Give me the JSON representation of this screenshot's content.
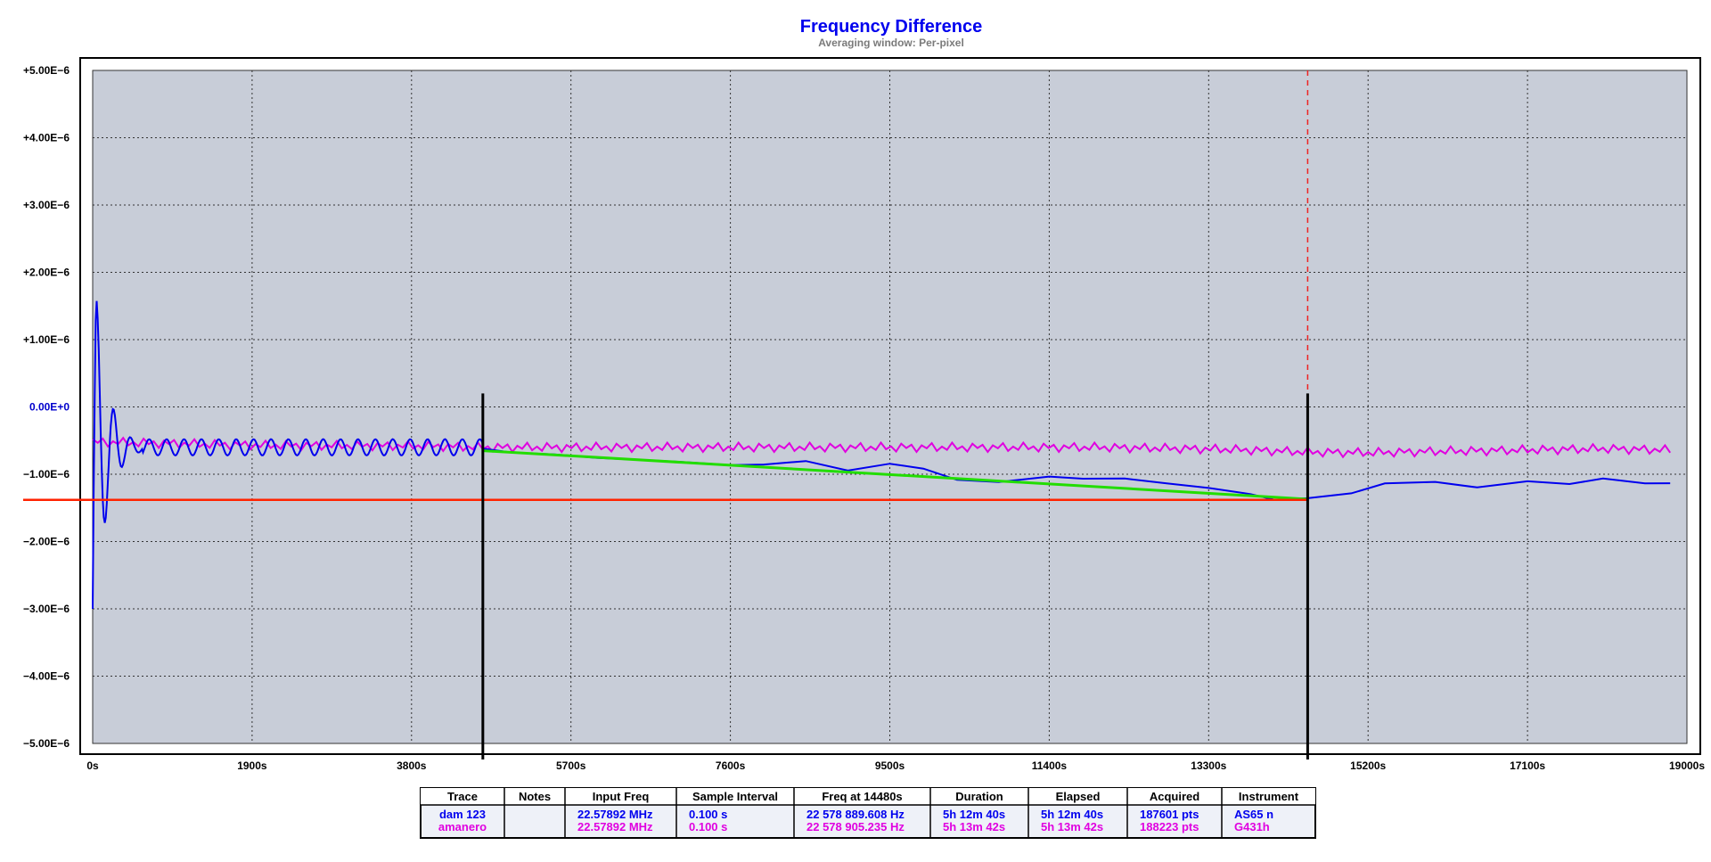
{
  "colors": {
    "title": "#0000ee",
    "subtitle": "#7a7a7a",
    "plot_background": "#c8cdd8",
    "grid": "#333333",
    "trace_dam": "#0000ee",
    "trace_amanero": "#e000e0",
    "fit_line": "#22dd00",
    "reference_line": "#ff2200",
    "cursor_marker": "#000000",
    "cursor_dashed": "#ee2222",
    "zero_tick": "#0000cc",
    "table_freq_header": "#ff0000"
  },
  "chart_data": {
    "type": "line",
    "title": "Frequency Difference",
    "subtitle": "Averaging window: Per-pixel",
    "xlim": [
      0,
      19000
    ],
    "ylim": [
      -5e-06,
      5e-06
    ],
    "x_ticks": [
      0,
      1900,
      3800,
      5700,
      7600,
      9500,
      11400,
      13300,
      15200,
      17100,
      19000
    ],
    "x_tick_labels": [
      "0s",
      "1900s",
      "3800s",
      "5700s",
      "7600s",
      "9500s",
      "11400s",
      "13300s",
      "15200s",
      "17100s",
      "19000s"
    ],
    "y_ticks": [
      5e-06,
      4e-06,
      3e-06,
      2e-06,
      1e-06,
      0,
      -1e-06,
      -2e-06,
      -3e-06,
      -4e-06,
      -5e-06
    ],
    "y_tick_labels": [
      "+5.00E−6",
      "+4.00E−6",
      "+3.00E−6",
      "+2.00E−6",
      "+1.00E−6",
      "0.00E+0",
      "−1.00E−6",
      "−2.00E−6",
      "−3.00E−6",
      "−4.00E−6",
      "−5.00E−6"
    ],
    "grid": true,
    "series": [
      {
        "name": "dam 123",
        "color": "#0000ee",
        "points": [
          [
            4650,
            -6.2e-07
          ],
          [
            5000,
            -6.8e-07
          ],
          [
            5500,
            -7.2e-07
          ],
          [
            6000,
            -7.4e-07
          ],
          [
            6500,
            -8e-07
          ],
          [
            7000,
            -8e-07
          ],
          [
            7600,
            -8.8e-07
          ],
          [
            8000,
            -8.4e-07
          ],
          [
            8500,
            -8.2e-07
          ],
          [
            9000,
            -9.3e-07
          ],
          [
            9500,
            -8.6e-07
          ],
          [
            9900,
            -9e-07
          ],
          [
            10300,
            -1.1e-06
          ],
          [
            10800,
            -1.1e-06
          ],
          [
            11400,
            -1.05e-06
          ],
          [
            11800,
            -1.05e-06
          ],
          [
            12300,
            -1.08e-06
          ],
          [
            12800,
            -1.12e-06
          ],
          [
            13300,
            -1.22e-06
          ],
          [
            13800,
            -1.28e-06
          ],
          [
            14100,
            -1.4e-06
          ],
          [
            14480,
            -1.34e-06
          ],
          [
            15000,
            -1.3e-06
          ],
          [
            15400,
            -1.12e-06
          ],
          [
            16000,
            -1.13e-06
          ],
          [
            16500,
            -1.18e-06
          ],
          [
            17100,
            -1.12e-06
          ],
          [
            17600,
            -1.13e-06
          ],
          [
            18000,
            -1.08e-06
          ],
          [
            18500,
            -1.12e-06
          ],
          [
            18800,
            -1.15e-06
          ]
        ]
      },
      {
        "name": "amanero",
        "color": "#e000e0",
        "points": [
          [
            0,
            -5.2e-07
          ],
          [
            2000,
            -5.7e-07
          ],
          [
            4000,
            -5.8e-07
          ],
          [
            4650,
            -6e-07
          ],
          [
            6000,
            -6e-07
          ],
          [
            8000,
            -6e-07
          ],
          [
            10000,
            -6e-07
          ],
          [
            12000,
            -6e-07
          ],
          [
            13500,
            -6.3e-07
          ],
          [
            14480,
            -6.7e-07
          ],
          [
            15200,
            -6.8e-07
          ],
          [
            16000,
            -6.6e-07
          ],
          [
            17100,
            -6.4e-07
          ],
          [
            18000,
            -6.2e-07
          ],
          [
            18800,
            -6.4e-07
          ]
        ]
      }
    ],
    "overlays": {
      "fit_line": {
        "x0": 4650,
        "y0": -6.5e-07,
        "x1": 14480,
        "y1": -1.37e-06
      },
      "reference_level": -1.38e-06,
      "cursor_markers": [
        4650,
        14480
      ],
      "dashed_cursor": 14480
    }
  },
  "table": {
    "headers": [
      "Trace",
      "Notes",
      "Input Freq",
      "Sample Interval",
      "Freq at 14480s",
      "Duration",
      "Elapsed",
      "Acquired",
      "Instrument"
    ],
    "rows": [
      {
        "trace": "dam 123",
        "notes": "",
        "input_freq": "22.57892 MHz",
        "sample_interval": "0.100 s",
        "freq_at": "22 578 889.608 Hz",
        "duration": "5h 12m 40s",
        "elapsed": "5h 12m 40s",
        "acquired": "187601 pts",
        "instrument": "AS65 n",
        "color": "#0000ee"
      },
      {
        "trace": "amanero",
        "notes": "",
        "input_freq": "22.57892 MHz",
        "sample_interval": "0.100 s",
        "freq_at": "22 578 905.235 Hz",
        "duration": "5h 13m 42s",
        "elapsed": "5h 13m 42s",
        "acquired": "188223 pts",
        "instrument": "G431h",
        "color": "#e000e0"
      }
    ]
  }
}
